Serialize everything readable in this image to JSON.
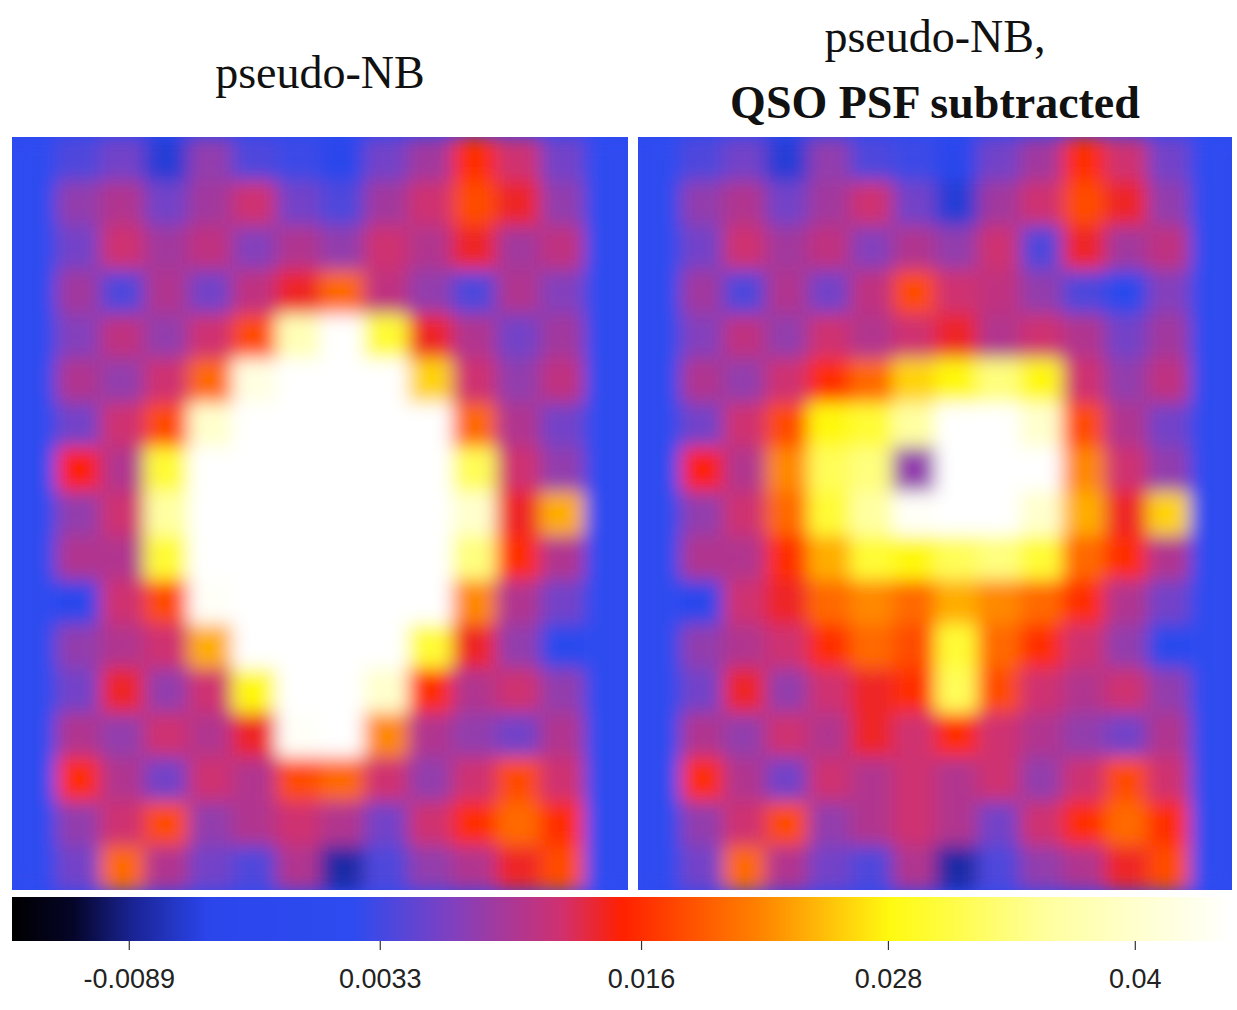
{
  "chart_data": [
    {
      "type": "heatmap",
      "title": "pseudo-NB",
      "cells": [
        [
          0.002,
          0.004,
          0.006,
          -0.006,
          0.008,
          0.004,
          0.003,
          -0.004,
          0.006,
          0.009,
          0.016,
          0.012,
          0.006,
          0.002
        ],
        [
          0.002,
          0.008,
          0.01,
          0.006,
          0.009,
          0.012,
          0.006,
          0.004,
          0.009,
          0.012,
          0.018,
          0.014,
          0.008,
          0.002
        ],
        [
          0.002,
          0.006,
          0.012,
          0.009,
          0.011,
          0.007,
          0.01,
          0.008,
          0.012,
          0.01,
          0.014,
          0.009,
          0.011,
          0.002
        ],
        [
          0.002,
          0.009,
          0.004,
          0.01,
          0.006,
          0.011,
          0.014,
          0.02,
          0.011,
          0.008,
          0.004,
          0.01,
          0.007,
          0.002
        ],
        [
          0.002,
          0.007,
          0.011,
          0.008,
          0.012,
          0.018,
          0.038,
          0.046,
          0.03,
          0.014,
          0.01,
          0.006,
          0.009,
          0.002
        ],
        [
          0.002,
          0.01,
          0.008,
          0.012,
          0.02,
          0.042,
          0.05,
          0.05,
          0.048,
          0.026,
          0.012,
          0.008,
          0.011,
          0.002
        ],
        [
          0.002,
          0.006,
          0.012,
          0.018,
          0.04,
          0.05,
          0.05,
          0.05,
          0.05,
          0.046,
          0.02,
          0.01,
          0.006,
          0.002
        ],
        [
          0.002,
          0.015,
          0.01,
          0.03,
          0.05,
          0.05,
          0.05,
          0.05,
          0.05,
          0.05,
          0.032,
          0.012,
          0.008,
          0.002
        ],
        [
          0.002,
          0.008,
          0.012,
          0.036,
          0.05,
          0.05,
          0.05,
          0.05,
          0.05,
          0.05,
          0.04,
          0.014,
          0.024,
          0.002
        ],
        [
          0.002,
          0.01,
          0.01,
          0.03,
          0.05,
          0.05,
          0.05,
          0.05,
          0.05,
          0.05,
          0.034,
          0.016,
          0.01,
          0.002
        ],
        [
          0.002,
          -0.004,
          0.012,
          0.018,
          0.044,
          0.05,
          0.05,
          0.05,
          0.05,
          0.048,
          0.022,
          0.01,
          0.006,
          0.002
        ],
        [
          0.002,
          0.008,
          0.01,
          0.012,
          0.024,
          0.046,
          0.05,
          0.05,
          0.05,
          0.03,
          0.014,
          0.008,
          -0.002,
          0.002
        ],
        [
          0.002,
          0.006,
          0.014,
          0.008,
          0.012,
          0.028,
          0.05,
          0.05,
          0.04,
          0.016,
          0.01,
          0.012,
          0.008,
          0.002
        ],
        [
          0.002,
          0.01,
          0.008,
          0.012,
          0.01,
          0.014,
          0.044,
          0.046,
          0.022,
          0.01,
          0.008,
          0.006,
          0.01,
          0.002
        ],
        [
          0.002,
          0.016,
          0.01,
          0.006,
          0.012,
          0.01,
          0.018,
          0.02,
          0.012,
          0.008,
          0.012,
          0.018,
          0.012,
          0.002
        ],
        [
          0.002,
          0.008,
          0.012,
          0.018,
          0.008,
          0.01,
          0.012,
          0.01,
          0.006,
          0.012,
          0.016,
          0.02,
          0.016,
          0.002
        ],
        [
          0.002,
          0.006,
          0.02,
          0.01,
          0.006,
          0.004,
          0.01,
          -0.008,
          0.004,
          0.008,
          0.01,
          0.014,
          0.018,
          0.002
        ]
      ]
    },
    {
      "type": "heatmap",
      "title": "pseudo-NB,",
      "subtitle": "QSO PSF subtracted",
      "cells": [
        [
          0.002,
          0.004,
          0.006,
          -0.006,
          0.008,
          0.004,
          0.003,
          -0.004,
          0.006,
          0.009,
          0.016,
          0.012,
          0.006,
          0.002
        ],
        [
          0.002,
          0.008,
          0.01,
          0.006,
          0.009,
          0.012,
          0.006,
          -0.006,
          0.009,
          0.012,
          0.018,
          0.014,
          0.008,
          0.002
        ],
        [
          0.002,
          0.006,
          0.012,
          0.009,
          0.011,
          0.007,
          0.01,
          0.008,
          0.012,
          0.004,
          0.014,
          0.009,
          0.011,
          0.002
        ],
        [
          0.002,
          0.009,
          0.004,
          0.01,
          0.006,
          0.011,
          0.018,
          0.012,
          0.011,
          0.008,
          0.004,
          -0.002,
          0.007,
          0.002
        ],
        [
          0.002,
          0.007,
          0.011,
          0.008,
          0.012,
          0.01,
          0.012,
          0.014,
          0.01,
          0.012,
          0.01,
          0.006,
          0.009,
          0.002
        ],
        [
          0.002,
          0.01,
          0.008,
          0.012,
          0.016,
          0.02,
          0.026,
          0.028,
          0.034,
          0.028,
          0.012,
          0.008,
          0.011,
          0.002
        ],
        [
          0.002,
          0.006,
          0.012,
          0.018,
          0.028,
          0.03,
          0.036,
          0.046,
          0.05,
          0.04,
          0.018,
          0.01,
          0.006,
          0.002
        ],
        [
          0.002,
          0.015,
          0.01,
          0.022,
          0.032,
          0.034,
          0.008,
          0.05,
          0.05,
          0.046,
          0.022,
          0.012,
          0.008,
          0.002
        ],
        [
          0.002,
          0.008,
          0.012,
          0.02,
          0.03,
          0.036,
          0.044,
          0.05,
          0.05,
          0.04,
          0.024,
          0.014,
          0.026,
          0.002
        ],
        [
          0.002,
          0.01,
          0.01,
          0.016,
          0.024,
          0.03,
          0.028,
          0.032,
          0.034,
          0.03,
          0.02,
          0.016,
          0.01,
          0.002
        ],
        [
          0.002,
          -0.004,
          0.012,
          0.014,
          0.02,
          0.022,
          0.02,
          0.024,
          0.022,
          0.02,
          0.016,
          0.01,
          0.006,
          0.002
        ],
        [
          0.002,
          0.008,
          0.01,
          0.012,
          0.016,
          0.02,
          0.018,
          0.03,
          0.02,
          0.016,
          0.012,
          0.008,
          -0.002,
          0.002
        ],
        [
          0.002,
          0.006,
          0.014,
          0.008,
          0.012,
          0.014,
          0.016,
          0.032,
          0.018,
          0.012,
          0.01,
          0.012,
          0.008,
          0.002
        ],
        [
          0.002,
          0.01,
          0.008,
          0.012,
          0.01,
          0.014,
          0.012,
          0.016,
          0.012,
          0.01,
          0.008,
          0.006,
          0.01,
          0.002
        ],
        [
          0.002,
          0.016,
          0.01,
          0.006,
          0.012,
          0.01,
          0.012,
          0.01,
          0.012,
          0.008,
          0.012,
          0.018,
          0.012,
          0.002
        ],
        [
          0.002,
          0.008,
          0.012,
          0.018,
          0.008,
          0.01,
          0.012,
          0.01,
          0.006,
          0.012,
          0.016,
          0.02,
          0.016,
          0.002
        ],
        [
          0.002,
          0.006,
          0.02,
          0.01,
          0.006,
          0.004,
          0.01,
          -0.008,
          0.004,
          0.008,
          0.01,
          0.014,
          0.018,
          0.002
        ]
      ]
    }
  ],
  "colorbar": {
    "range": [
      -0.0146,
      0.0447
    ],
    "ticks": [
      -0.0089,
      0.0033,
      0.016,
      0.028,
      0.04
    ]
  }
}
